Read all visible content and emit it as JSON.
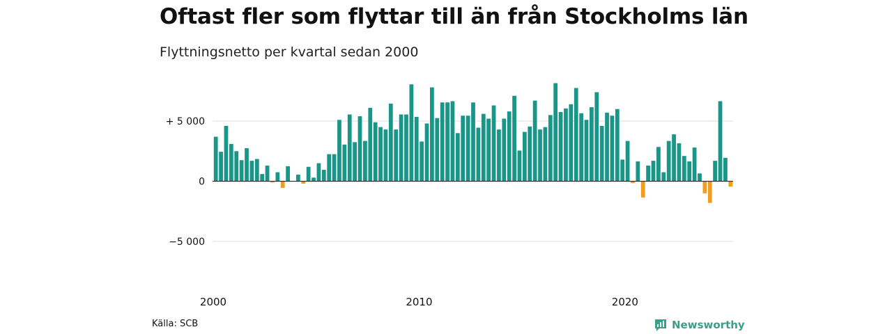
{
  "header": {
    "title": "Oftast fler som flyttar till än från Stockholms län",
    "subtitle": "Flyttningsnetto per kvartal sedan 2000"
  },
  "footer": {
    "source": "Källa: SCB",
    "brand": "Newsworthy",
    "brand_icon": "newsworthy-logo-icon"
  },
  "colors": {
    "positive": "#1a9688",
    "negative": "#f29d1e",
    "grid": "#dddddd",
    "zero_line": "#333333",
    "brand": "#3a9e8a"
  },
  "chart_data": {
    "type": "bar",
    "title": "Flyttningsnetto per kvartal sedan 2000",
    "xlabel": "",
    "ylabel": "",
    "ylim": [
      -7500,
      8500
    ],
    "yticks": [
      -5000,
      0,
      5000
    ],
    "ytick_labels": [
      "−5 000",
      "0",
      "+ 5 000"
    ],
    "xticks": [
      2000,
      2010,
      2020
    ],
    "xtick_labels": [
      "2000",
      "2010",
      "2020"
    ],
    "grid": true,
    "legend": "none",
    "x_start_year": 2000,
    "periods_per_year": 4,
    "categories": [
      "2000 Q1",
      "2000 Q2",
      "2000 Q3",
      "2000 Q4",
      "2001 Q1",
      "2001 Q2",
      "2001 Q3",
      "2001 Q4",
      "2002 Q1",
      "2002 Q2",
      "2002 Q3",
      "2002 Q4",
      "2003 Q1",
      "2003 Q2",
      "2003 Q3",
      "2003 Q4",
      "2004 Q1",
      "2004 Q2",
      "2004 Q3",
      "2004 Q4",
      "2005 Q1",
      "2005 Q2",
      "2005 Q3",
      "2005 Q4",
      "2006 Q1",
      "2006 Q2",
      "2006 Q3",
      "2006 Q4",
      "2007 Q1",
      "2007 Q2",
      "2007 Q3",
      "2007 Q4",
      "2008 Q1",
      "2008 Q2",
      "2008 Q3",
      "2008 Q4",
      "2009 Q1",
      "2009 Q2",
      "2009 Q3",
      "2009 Q4",
      "2010 Q1",
      "2010 Q2",
      "2010 Q3",
      "2010 Q4",
      "2011 Q1",
      "2011 Q2",
      "2011 Q3",
      "2011 Q4",
      "2012 Q1",
      "2012 Q2",
      "2012 Q3",
      "2012 Q4",
      "2013 Q1",
      "2013 Q2",
      "2013 Q3",
      "2013 Q4",
      "2014 Q1",
      "2014 Q2",
      "2014 Q3",
      "2014 Q4",
      "2015 Q1",
      "2015 Q2",
      "2015 Q3",
      "2015 Q4",
      "2016 Q1",
      "2016 Q2",
      "2016 Q3",
      "2016 Q4",
      "2017 Q1",
      "2017 Q2",
      "2017 Q3",
      "2017 Q4",
      "2018 Q1",
      "2018 Q2",
      "2018 Q3",
      "2018 Q4",
      "2019 Q1",
      "2019 Q2",
      "2019 Q3",
      "2019 Q4",
      "2020 Q1",
      "2020 Q2",
      "2020 Q3",
      "2020 Q4",
      "2021 Q1",
      "2021 Q2",
      "2021 Q3",
      "2021 Q4",
      "2022 Q1",
      "2022 Q2",
      "2022 Q3",
      "2022 Q4",
      "2023 Q1",
      "2023 Q2",
      "2023 Q3",
      "2023 Q4",
      "2024 Q1",
      "2024 Q2",
      "2024 Q3",
      "2024 Q4",
      "2025 Q1"
    ],
    "values": [
      3700,
      2450,
      4600,
      3100,
      2500,
      1750,
      2750,
      1700,
      1850,
      600,
      1300,
      -100,
      750,
      -550,
      1250,
      0,
      550,
      -200,
      1200,
      300,
      1500,
      950,
      2250,
      2250,
      5100,
      3050,
      5550,
      3250,
      5400,
      3350,
      6100,
      4900,
      4500,
      4300,
      6450,
      4300,
      5550,
      5550,
      8050,
      5350,
      3300,
      4800,
      7800,
      5250,
      6550,
      6550,
      6650,
      4000,
      5450,
      5450,
      6550,
      4450,
      5600,
      5200,
      6300,
      4300,
      5200,
      5800,
      7100,
      2550,
      4100,
      4550,
      6700,
      4300,
      4500,
      5500,
      8150,
      5750,
      6050,
      6400,
      7750,
      5650,
      5100,
      6150,
      7400,
      4600,
      5700,
      5450,
      6000,
      1800,
      3350,
      -150,
      1650,
      -1350,
      1300,
      1700,
      2850,
      750,
      3350,
      3900,
      3150,
      2100,
      1650,
      2800,
      650,
      -1000,
      -1800,
      1700,
      6650,
      1950,
      -450
    ]
  }
}
